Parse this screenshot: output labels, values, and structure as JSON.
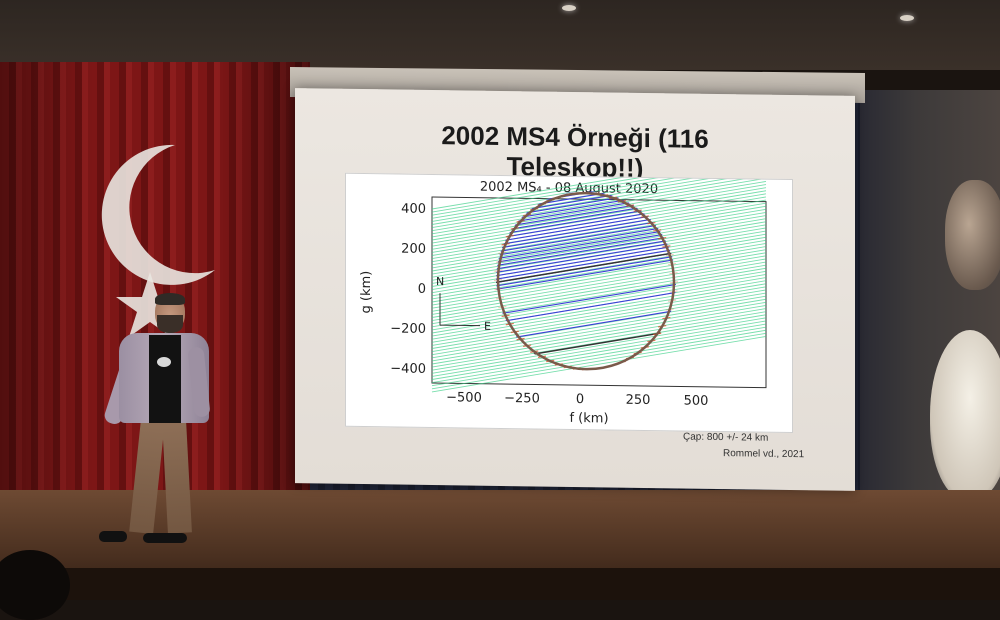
{
  "slide": {
    "title_line1": "2002 MS4 Örneği (116",
    "title_line2": "Teleskop!!)",
    "caption_diameter": "Çap: 800 +/- 24 km",
    "caption_source": "Rommel vd., 2021"
  },
  "plot": {
    "title": "2002 MS₄ - 08 August 2020",
    "xlabel": "f (km)",
    "ylabel": "g (km)",
    "xticks": [
      "−500",
      "−250",
      "0",
      "250",
      "500"
    ],
    "yticks": [
      "400",
      "200",
      "0",
      "−200",
      "−400"
    ],
    "compass_n": "N",
    "compass_e": "E",
    "colors": {
      "negative_chords": "#3fd18a",
      "positive_chords": "#3c3fd6",
      "fit_limb": "#7a5a4a",
      "chord_edges": "#d0562a"
    }
  },
  "scene": {
    "colors": {
      "flag_red": "#7d1616",
      "crescent_white": "#e9e6e0",
      "screen": "#ece7e1"
    }
  }
}
